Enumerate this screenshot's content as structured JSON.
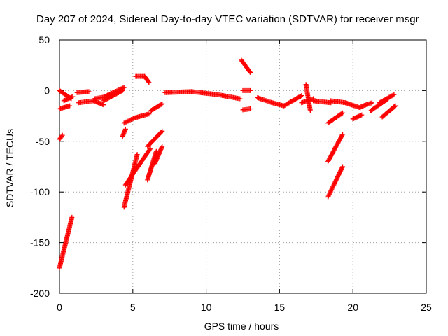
{
  "chart_data": {
    "type": "scatter",
    "title": "Day 207 of 2024, Sidereal Day-to-day VTEC variation (SDTVAR) for receiver msgr",
    "xlabel": "GPS time / hours",
    "ylabel": "SDTVAR / TECUs",
    "xlim": [
      0,
      25
    ],
    "ylim": [
      -200,
      50
    ],
    "xticks": [
      0,
      5,
      10,
      15,
      20,
      25
    ],
    "yticks": [
      -200,
      -150,
      -100,
      -50,
      0,
      50
    ],
    "grid": true,
    "marker": "+",
    "color": "#ff0000",
    "segments": [
      {
        "x0": 0.0,
        "y0": -175,
        "x1": 0.85,
        "y1": -125
      },
      {
        "x0": 0.0,
        "y0": -48,
        "x1": 0.2,
        "y1": -44
      },
      {
        "x0": 0.0,
        "y0": -18,
        "x1": 0.7,
        "y1": -15
      },
      {
        "x0": 0.0,
        "y0": 0,
        "x1": 0.8,
        "y1": -8
      },
      {
        "x0": 0.3,
        "y0": -10,
        "x1": 0.9,
        "y1": -6
      },
      {
        "x0": 1.2,
        "y0": -2,
        "x1": 2.0,
        "y1": -1
      },
      {
        "x0": 1.3,
        "y0": -12,
        "x1": 2.3,
        "y1": -10
      },
      {
        "x0": 2.3,
        "y0": -10,
        "x1": 3.0,
        "y1": -14
      },
      {
        "x0": 2.4,
        "y0": -8,
        "x1": 3.6,
        "y1": -5
      },
      {
        "x0": 3.0,
        "y0": -10,
        "x1": 4.3,
        "y1": 0
      },
      {
        "x0": 3.2,
        "y0": -5,
        "x1": 4.4,
        "y1": 3
      },
      {
        "x0": 4.3,
        "y0": -45,
        "x1": 4.5,
        "y1": -38
      },
      {
        "x0": 4.4,
        "y0": -32,
        "x1": 5.1,
        "y1": -27
      },
      {
        "x0": 5.1,
        "y0": -27,
        "x1": 6.1,
        "y1": -23
      },
      {
        "x0": 4.4,
        "y0": -115,
        "x1": 5.3,
        "y1": -63
      },
      {
        "x0": 4.5,
        "y0": -93,
        "x1": 6.2,
        "y1": -57
      },
      {
        "x0": 5.2,
        "y0": 14,
        "x1": 5.8,
        "y1": 14
      },
      {
        "x0": 5.8,
        "y0": 14,
        "x1": 6.1,
        "y1": 8
      },
      {
        "x0": 6.0,
        "y0": -88,
        "x1": 6.6,
        "y1": -60
      },
      {
        "x0": 6.0,
        "y0": -55,
        "x1": 7.0,
        "y1": -40
      },
      {
        "x0": 6.2,
        "y0": -20,
        "x1": 7.0,
        "y1": -13
      },
      {
        "x0": 6.5,
        "y0": -72,
        "x1": 7.0,
        "y1": -55
      },
      {
        "x0": 7.2,
        "y0": -2,
        "x1": 9.0,
        "y1": -1
      },
      {
        "x0": 9.0,
        "y0": -1,
        "x1": 10.8,
        "y1": -4
      },
      {
        "x0": 10.8,
        "y0": -4,
        "x1": 12.3,
        "y1": -8
      },
      {
        "x0": 12.4,
        "y0": 30,
        "x1": 13.0,
        "y1": 18
      },
      {
        "x0": 12.5,
        "y0": 0,
        "x1": 13.0,
        "y1": 0
      },
      {
        "x0": 12.5,
        "y0": -19,
        "x1": 13.0,
        "y1": -18
      },
      {
        "x0": 13.5,
        "y0": -7,
        "x1": 14.5,
        "y1": -12
      },
      {
        "x0": 14.5,
        "y0": -12,
        "x1": 15.3,
        "y1": -15
      },
      {
        "x0": 15.3,
        "y0": -15,
        "x1": 16.5,
        "y1": -5
      },
      {
        "x0": 16.5,
        "y0": -12,
        "x1": 17.3,
        "y1": -8
      },
      {
        "x0": 16.8,
        "y0": 6,
        "x1": 17.1,
        "y1": -20
      },
      {
        "x0": 17.3,
        "y0": -10,
        "x1": 18.5,
        "y1": -12
      },
      {
        "x0": 18.3,
        "y0": -70,
        "x1": 19.3,
        "y1": -43
      },
      {
        "x0": 18.3,
        "y0": -105,
        "x1": 19.3,
        "y1": -75
      },
      {
        "x0": 18.3,
        "y0": -32,
        "x1": 19.3,
        "y1": -22
      },
      {
        "x0": 18.5,
        "y0": -10,
        "x1": 19.5,
        "y1": -12
      },
      {
        "x0": 19.5,
        "y0": -12,
        "x1": 20.5,
        "y1": -17
      },
      {
        "x0": 20.0,
        "y0": -28,
        "x1": 20.6,
        "y1": -24
      },
      {
        "x0": 20.5,
        "y0": -16,
        "x1": 21.3,
        "y1": -12
      },
      {
        "x0": 21.2,
        "y0": -20,
        "x1": 22.4,
        "y1": -8
      },
      {
        "x0": 21.8,
        "y0": -12,
        "x1": 22.8,
        "y1": -4
      },
      {
        "x0": 22.0,
        "y0": -26,
        "x1": 22.8,
        "y1": -16
      },
      {
        "x0": 22.5,
        "y0": -20,
        "x1": 22.9,
        "y1": -15
      }
    ]
  }
}
